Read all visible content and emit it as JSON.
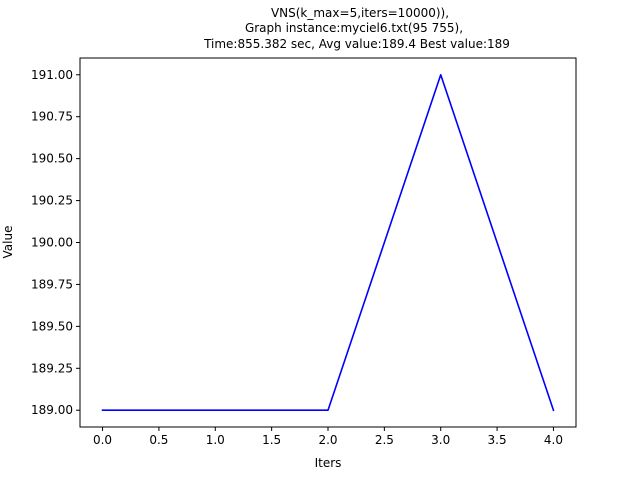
{
  "chart_data": {
    "type": "line",
    "title_lines": [
      "VNS(k_max=5,iters=10000)),",
      "Graph instance:myciel6.txt(95 755),",
      "Time:855.382 sec, Avg value:189.4 Best value:189"
    ],
    "xlabel": "Iters",
    "ylabel": "Value",
    "x": [
      0,
      1,
      2,
      3,
      4
    ],
    "series": [
      {
        "values": [
          189,
          189,
          189,
          191,
          189
        ],
        "color": "#0000ff"
      }
    ],
    "xlim": [
      -0.2,
      4.2
    ],
    "ylim": [
      188.9,
      191.1
    ],
    "xticks": [
      0.0,
      0.5,
      1.0,
      1.5,
      2.0,
      2.5,
      3.0,
      3.5,
      4.0
    ],
    "xtick_labels": [
      "0.0",
      "0.5",
      "1.0",
      "1.5",
      "2.0",
      "2.5",
      "3.0",
      "3.5",
      "4.0"
    ],
    "yticks": [
      189.0,
      189.25,
      189.5,
      189.75,
      190.0,
      190.25,
      190.5,
      190.75,
      191.0
    ],
    "ytick_labels": [
      "189.00",
      "189.25",
      "189.50",
      "189.75",
      "190.00",
      "190.25",
      "190.50",
      "190.75",
      "191.00"
    ],
    "grid": false,
    "legend": "none"
  }
}
